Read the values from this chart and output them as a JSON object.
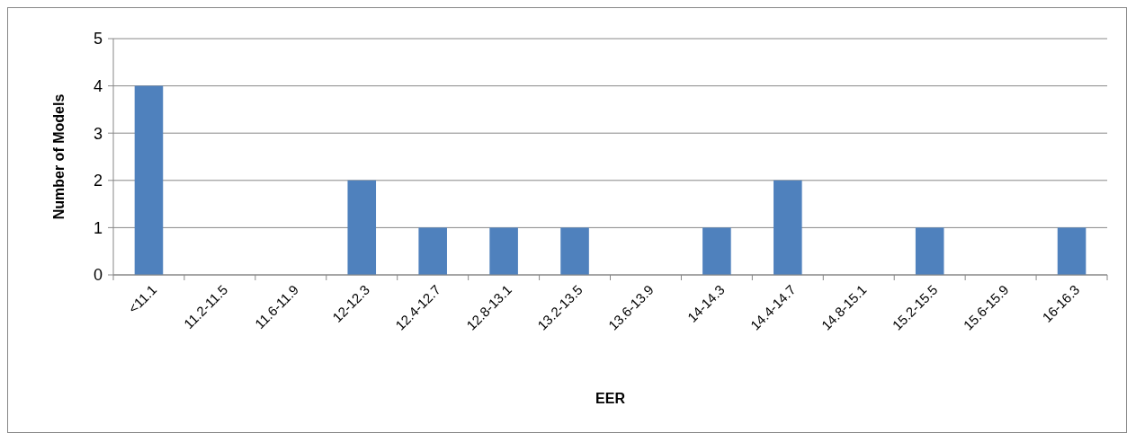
{
  "chart_data": {
    "type": "bar",
    "xlabel": "EER",
    "ylabel": "Number of Models",
    "categories": [
      "<11.1",
      "11.2-11.5",
      "11.6-11.9",
      "12-12.3",
      "12.4-12.7",
      "12.8-13.1",
      "13.2-13.5",
      "13.6-13.9",
      "14-14.3",
      "14.4-14.7",
      "14.8-15.1",
      "15.2-15.5",
      "15.6-15.9",
      "16-16.3"
    ],
    "values": [
      4,
      0,
      0,
      2,
      1,
      1,
      1,
      0,
      1,
      2,
      0,
      1,
      0,
      1
    ],
    "color": "#4f81bd",
    "ylim": [
      0,
      5
    ],
    "yticks": [
      0,
      1,
      2,
      3,
      4,
      5
    ],
    "grid": "y"
  }
}
